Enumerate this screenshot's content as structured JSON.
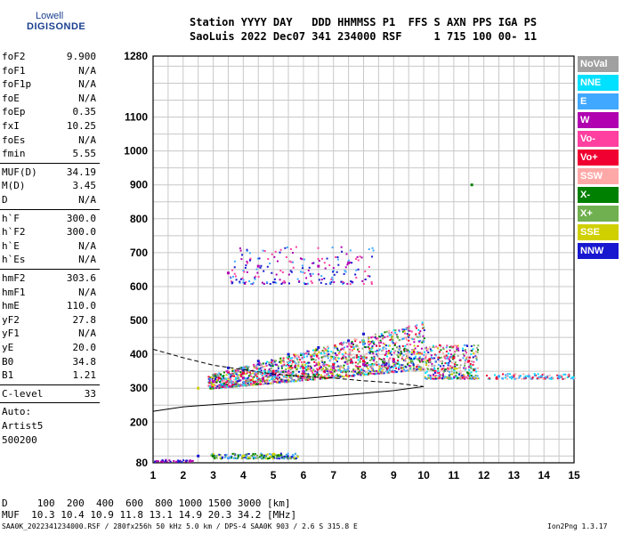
{
  "logo": {
    "top": "Lowell",
    "main": "DIGISONDE"
  },
  "header": {
    "line1": "Station YYYY DAY   DDD HHMMSS P1  FFS S AXN PPS IGA PS",
    "line2": "SaoLuis 2022 Dec07 341 234000 RSF     1 715 100 00- 11"
  },
  "params_group1": [
    {
      "label": "foF2",
      "value": "9.900"
    },
    {
      "label": "foF1",
      "value": "N/A"
    },
    {
      "label": "foF1p",
      "value": "N/A"
    },
    {
      "label": "foE",
      "value": "N/A"
    },
    {
      "label": "foEp",
      "value": "0.35"
    },
    {
      "label": "fxI",
      "value": "10.25"
    },
    {
      "label": "foEs",
      "value": "N/A"
    },
    {
      "label": "fmin",
      "value": "5.55"
    }
  ],
  "params_group2": [
    {
      "label": "MUF(D)",
      "value": "34.19"
    },
    {
      "label": "M(D)",
      "value": "3.45"
    },
    {
      "label": "D",
      "value": "N/A"
    }
  ],
  "params_group3": [
    {
      "label": "h`F",
      "value": "300.0"
    },
    {
      "label": "h`F2",
      "value": "300.0"
    },
    {
      "label": "h`E",
      "value": "N/A"
    },
    {
      "label": "h`Es",
      "value": "N/A"
    }
  ],
  "params_group4": [
    {
      "label": "hmF2",
      "value": "303.6"
    },
    {
      "label": "hmF1",
      "value": "N/A"
    },
    {
      "label": "hmE",
      "value": "110.0"
    },
    {
      "label": "yF2",
      "value": "27.8"
    },
    {
      "label": "yF1",
      "value": "N/A"
    },
    {
      "label": "yE",
      "value": "20.0"
    },
    {
      "label": "B0",
      "value": "34.8"
    },
    {
      "label": "B1",
      "value": "1.21"
    }
  ],
  "clevel": {
    "label": "C-level",
    "value": "33"
  },
  "auto": {
    "line1": "Auto:",
    "line2": "Artist5",
    "line3": "500200"
  },
  "legend": [
    {
      "label": "NoVal",
      "color": "#a0a0a0"
    },
    {
      "label": "NNE",
      "color": "#00e0ff"
    },
    {
      "label": "E",
      "color": "#40a8ff"
    },
    {
      "label": "W",
      "color": "#b000b0"
    },
    {
      "label": "Vo-",
      "color": "#ff40a0"
    },
    {
      "label": "Vo+",
      "color": "#f00030"
    },
    {
      "label": "SSW",
      "color": "#ffa8a8"
    },
    {
      "label": "X-",
      "color": "#008000"
    },
    {
      "label": "X+",
      "color": "#70b050"
    },
    {
      "label": "SSE",
      "color": "#d0d000"
    },
    {
      "label": "NNW",
      "color": "#1818d0"
    }
  ],
  "y_ticks": [
    "1280",
    "1100",
    "1000",
    "900",
    "800",
    "700",
    "600",
    "500",
    "400",
    "300",
    "200",
    "80"
  ],
  "x_ticks": [
    "1",
    "2",
    "3",
    "4",
    "5",
    "6",
    "7",
    "8",
    "9",
    "10",
    "11",
    "12",
    "13",
    "14",
    "15"
  ],
  "bottom": {
    "line1": "D     100  200  400  600  800 1000 1500 3000 [km]",
    "line2": "MUF  10.3 10.4 10.9 11.8 13.1 14.9 20.3 34.2 [MHz]"
  },
  "footer": {
    "left": "SAA0K_2022341234000.RSF / 280fx256h 50 kHz 5.0 km / DPS-4 SAA0K 903 / 2.6 S 315.8 E",
    "right": "Ion2Png 1.3.17"
  },
  "chart_data": {
    "type": "scatter",
    "title": "",
    "xlabel": "",
    "ylabel": "",
    "x_unit": "MHz",
    "y_unit": "km",
    "xlim": [
      1,
      15
    ],
    "ylim": [
      80,
      1280
    ],
    "grid": true,
    "series": [
      {
        "name": "Vo+",
        "color": "#f00030",
        "points": [
          [
            3.2,
            330
          ],
          [
            4.0,
            345
          ],
          [
            5.0,
            350
          ],
          [
            6.0,
            360
          ],
          [
            7.0,
            370
          ],
          [
            8.0,
            380
          ],
          [
            9.0,
            385
          ],
          [
            10.2,
            385
          ],
          [
            11.0,
            390
          ],
          [
            11.5,
            380
          ]
        ]
      },
      {
        "name": "W",
        "color": "#b000b0",
        "points": [
          [
            3.0,
            320
          ],
          [
            4.0,
            330
          ],
          [
            5.0,
            340
          ],
          [
            6.0,
            350
          ],
          [
            7.0,
            360
          ],
          [
            8.0,
            370
          ],
          [
            9.0,
            380
          ],
          [
            3.5,
            640
          ],
          [
            4.5,
            660
          ],
          [
            6.5,
            660
          ],
          [
            7.5,
            670
          ]
        ]
      },
      {
        "name": "NNW",
        "color": "#1818d0",
        "points": [
          [
            3.5,
            360
          ],
          [
            4.5,
            380
          ],
          [
            5.5,
            400
          ],
          [
            6.5,
            420
          ],
          [
            7.5,
            440
          ],
          [
            8.0,
            460
          ],
          [
            2.5,
            100
          ]
        ]
      },
      {
        "name": "E",
        "color": "#40a8ff",
        "points": [
          [
            4.0,
            360
          ],
          [
            6.0,
            400
          ],
          [
            8.0,
            430
          ],
          [
            12.5,
            335
          ],
          [
            13.5,
            335
          ],
          [
            14.5,
            335
          ]
        ]
      },
      {
        "name": "X-",
        "color": "#008000",
        "points": [
          [
            3.0,
            100
          ],
          [
            4.0,
            100
          ],
          [
            5.0,
            100
          ],
          [
            11.6,
            900
          ]
        ]
      },
      {
        "name": "SSE",
        "color": "#d0d000",
        "points": [
          [
            2.5,
            300
          ],
          [
            3.0,
            310
          ],
          [
            4.0,
            100
          ],
          [
            5.0,
            105
          ]
        ]
      }
    ]
  }
}
